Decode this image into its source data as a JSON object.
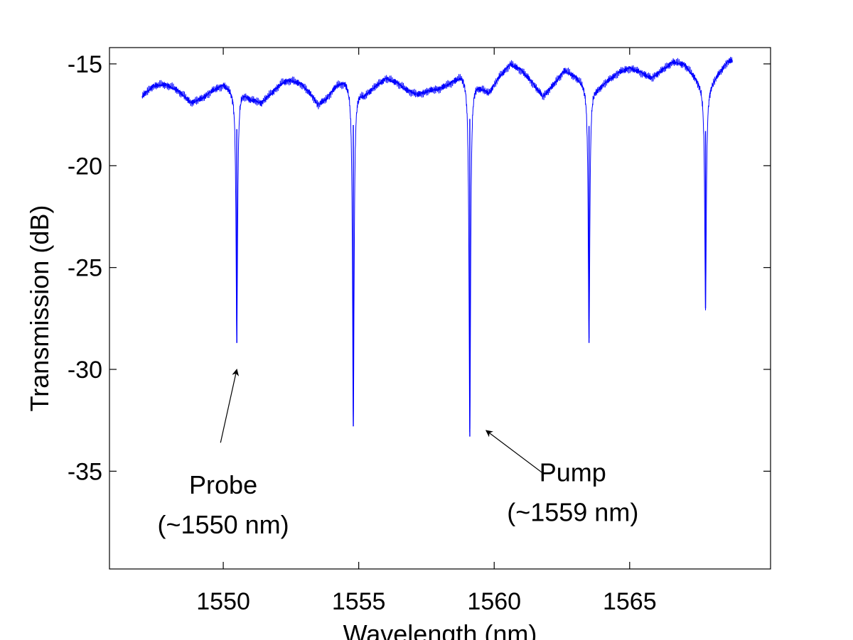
{
  "chart_data": {
    "type": "line",
    "title": "",
    "xlabel": "Wavelength (nm)",
    "ylabel": "Transmission (dB)",
    "xlim": [
      1545.8,
      1570.2
    ],
    "ylim": [
      -39.8,
      -14.2
    ],
    "xticks": [
      1550,
      1555,
      1560,
      1565
    ],
    "yticks": [
      -15,
      -20,
      -25,
      -30,
      -35
    ],
    "grid": false,
    "legend": "none",
    "line_color": "#0000ff",
    "series": [
      {
        "name": "",
        "baseline_points": [
          [
            1547.0,
            -16.6
          ],
          [
            1547.4,
            -16.1
          ],
          [
            1547.8,
            -16.0
          ],
          [
            1548.2,
            -16.2
          ],
          [
            1548.5,
            -16.5
          ],
          [
            1548.8,
            -16.9
          ],
          [
            1549.2,
            -16.7
          ],
          [
            1549.6,
            -16.3
          ],
          [
            1550.0,
            -16.0
          ],
          [
            1550.3,
            -16.2
          ],
          [
            1550.6,
            -16.2
          ],
          [
            1551.0,
            -16.7
          ],
          [
            1551.4,
            -16.9
          ],
          [
            1551.8,
            -16.4
          ],
          [
            1552.2,
            -15.9
          ],
          [
            1552.5,
            -15.8
          ],
          [
            1552.9,
            -16.0
          ],
          [
            1553.3,
            -16.6
          ],
          [
            1553.5,
            -17.0
          ],
          [
            1553.8,
            -16.7
          ],
          [
            1554.2,
            -16.0
          ],
          [
            1554.5,
            -15.8
          ],
          [
            1554.8,
            -16.0
          ],
          [
            1555.2,
            -16.5
          ],
          [
            1555.6,
            -16.1
          ],
          [
            1556.0,
            -15.7
          ],
          [
            1556.4,
            -15.9
          ],
          [
            1556.8,
            -16.3
          ],
          [
            1557.2,
            -16.5
          ],
          [
            1557.6,
            -16.3
          ],
          [
            1558.0,
            -16.2
          ],
          [
            1558.4,
            -15.9
          ],
          [
            1558.8,
            -15.5
          ],
          [
            1559.1,
            -15.7
          ],
          [
            1559.4,
            -16.0
          ],
          [
            1559.8,
            -16.4
          ],
          [
            1560.2,
            -15.6
          ],
          [
            1560.6,
            -15.0
          ],
          [
            1561.0,
            -15.3
          ],
          [
            1561.4,
            -15.9
          ],
          [
            1561.8,
            -16.6
          ],
          [
            1562.2,
            -16.0
          ],
          [
            1562.6,
            -15.3
          ],
          [
            1563.0,
            -15.6
          ],
          [
            1563.4,
            -16.0
          ],
          [
            1563.8,
            -16.2
          ],
          [
            1564.2,
            -15.8
          ],
          [
            1564.6,
            -15.4
          ],
          [
            1565.0,
            -15.2
          ],
          [
            1565.4,
            -15.4
          ],
          [
            1565.8,
            -15.7
          ],
          [
            1566.2,
            -15.3
          ],
          [
            1566.6,
            -14.9
          ],
          [
            1567.0,
            -15.0
          ],
          [
            1567.4,
            -15.6
          ],
          [
            1567.8,
            -16.3
          ],
          [
            1568.2,
            -15.6
          ],
          [
            1568.6,
            -14.9
          ],
          [
            1568.8,
            -14.8
          ]
        ],
        "resonances": [
          {
            "x": 1550.5,
            "y": -28.7
          },
          {
            "x": 1554.8,
            "y": -32.8
          },
          {
            "x": 1559.1,
            "y": -33.3
          },
          {
            "x": 1563.5,
            "y": -28.7
          },
          {
            "x": 1567.8,
            "y": -27.0
          }
        ]
      }
    ],
    "annotations": [
      {
        "lines": [
          "Probe",
          "(~1550 nm)"
        ],
        "text_x": 1550.0,
        "text_y": -36.1,
        "arrow_from": [
          1549.9,
          -33.6
        ],
        "arrow_to": [
          1550.5,
          -30.0
        ]
      },
      {
        "lines": [
          "Pump",
          "(~1559 nm)"
        ],
        "text_x": 1562.9,
        "text_y": -35.5,
        "arrow_from": [
          1561.8,
          -35.1
        ],
        "arrow_to": [
          1559.7,
          -33.0
        ]
      }
    ]
  }
}
